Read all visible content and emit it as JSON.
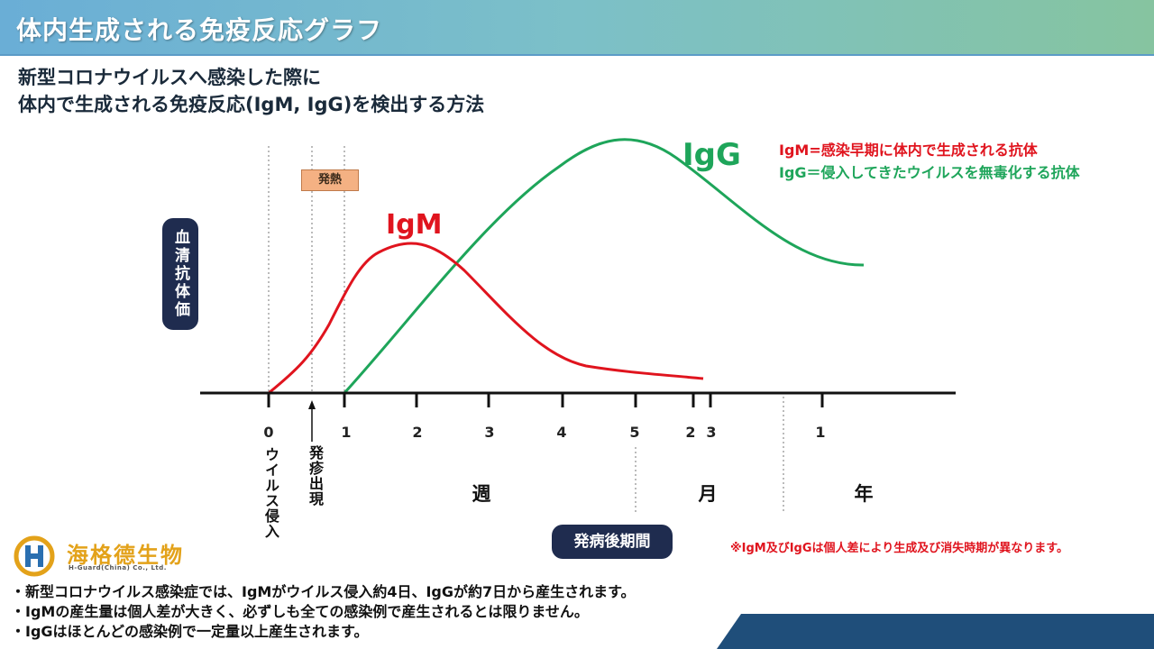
{
  "header": {
    "title": "体内生成される免疫反応グラフ"
  },
  "subtitle": {
    "line1": "新型コロナウイルスへ感染した際に",
    "line2": "体内で生成される免疫反応(IgM, IgG)を検出する方法"
  },
  "legend": {
    "igm": "IgM=感染早期に体内で生成される抗体",
    "igg": "IgG＝侵入してきたウイルスを無毒化する抗体"
  },
  "chart_data": {
    "type": "line",
    "series": [
      {
        "name": "IgM",
        "color": "#e0141e"
      },
      {
        "name": "IgG",
        "color": "#1ea55a"
      }
    ],
    "ylabel": "血清抗体価",
    "xlabel": "発病後期間",
    "ticks": [
      "0",
      "1",
      "2",
      "3",
      "4",
      "5",
      "2",
      "3",
      "1"
    ],
    "units": [
      "週",
      "月",
      "年"
    ],
    "annotations": {
      "fever": "発熱",
      "virus_entry": "ウイルス侵入",
      "rash": "発疹出現"
    }
  },
  "note": "※IgM及びIgGは個人差により生成及び消失時期が異なります。",
  "logo": {
    "name": "海格德生物",
    "sub": "H-Guard(China) Co., Ltd."
  },
  "bullets": [
    "・新型コロナウイルス感染症では、IgMがウイルス侵入約4日、IgGが約7日から産生されます。",
    "・IgMの産生量は個人差が大きく、必ずしも全ての感染例で産生されるとは限りません。",
    "・IgGはほとんどの感染例で一定量以上産生されます。"
  ]
}
